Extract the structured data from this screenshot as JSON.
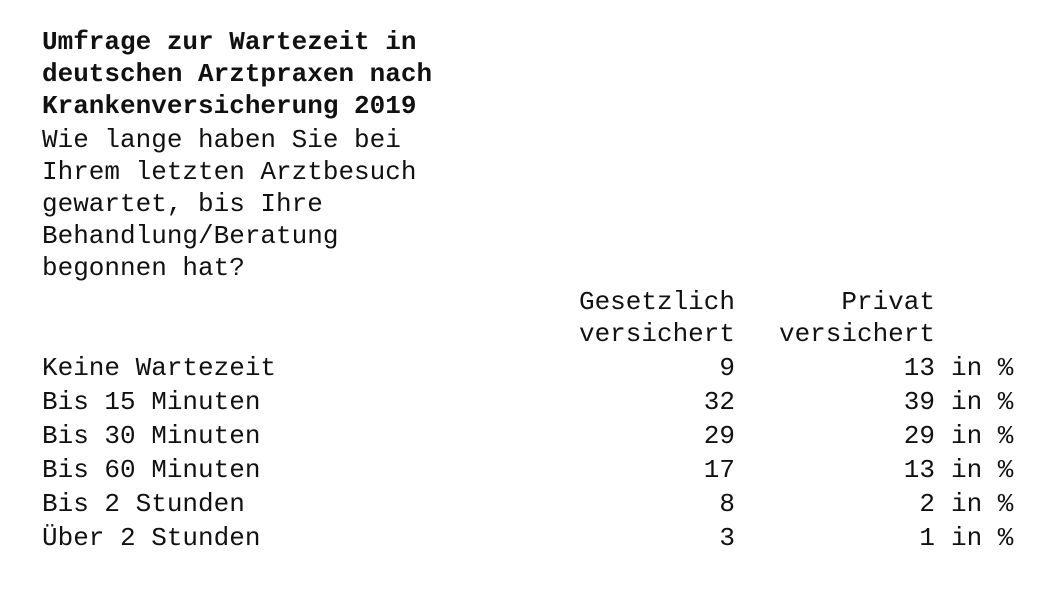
{
  "header": {
    "title": "Umfrage zur Wartezeit in deutschen Arztpraxen nach Krankenversicherung 2019",
    "question": "Wie lange haben Sie bei Ihrem letzten Arztbesuch gewartet, bis Ihre Behandlung/Beratung begonnen hat?"
  },
  "table": {
    "columns": [
      "Gesetzlich versichert",
      "Privat versichert"
    ],
    "unit": "in %",
    "rows": [
      [
        "Keine Wartezeit",
        9,
        13
      ],
      [
        "Bis 15 Minuten",
        32,
        39
      ],
      [
        "Bis 30 Minuten",
        29,
        29
      ],
      [
        "Bis 60 Minuten",
        17,
        13
      ],
      [
        "Bis 2 Stunden",
        8,
        2
      ],
      [
        "Über 2 Stunden",
        3,
        1
      ]
    ]
  }
}
